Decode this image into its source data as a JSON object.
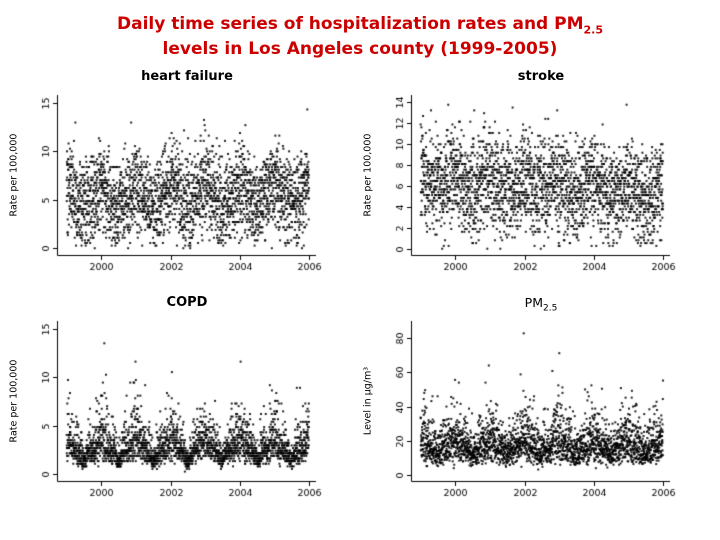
{
  "slide": {
    "title_line1": "Daily time series of hospitalization rates and PM",
    "title_line1_sub": "2.5",
    "title_line2": "levels in Los Angeles county (1999-2005)",
    "title_color": "#cc0000",
    "background": "#ffffff"
  },
  "chart_data": [
    {
      "type": "scatter",
      "title": "heart failure",
      "xlabel": "",
      "ylabel": "Rate per 100,000",
      "x_start": 1999.0,
      "n_points": 2557,
      "xlim": [
        1998.75,
        2006.2
      ],
      "ylim": [
        -0.7,
        15.8
      ],
      "xticks": [
        2000,
        2002,
        2004,
        2006
      ],
      "yticks": [
        0,
        5,
        10,
        15
      ],
      "point_color": "#000000",
      "gen": {
        "dist": "normal",
        "seed": 101,
        "base": 5.4,
        "noise": 2.35,
        "season_amp": 1.1,
        "season_pow": 1,
        "trend": 0,
        "quantum": 0.27,
        "clip_max": 15.5
      }
    },
    {
      "type": "scatter",
      "title": "stroke",
      "xlabel": "",
      "ylabel": "Rate per 100,000",
      "x_start": 1999.0,
      "n_points": 2557,
      "xlim": [
        1998.75,
        2006.2
      ],
      "ylim": [
        -0.6,
        14.7
      ],
      "xticks": [
        2000,
        2002,
        2004,
        2006
      ],
      "yticks": [
        0,
        2,
        4,
        6,
        8,
        10,
        12,
        14
      ],
      "point_color": "#000000",
      "gen": {
        "dist": "normal",
        "seed": 202,
        "base": 6.6,
        "noise": 2.3,
        "season_amp": 0.7,
        "season_pow": 1,
        "trend": -0.18,
        "quantum": 0.27,
        "clip_max": 14.4
      }
    },
    {
      "type": "scatter",
      "title": "COPD",
      "xlabel": "",
      "ylabel": "Rate per 100,000",
      "x_start": 1999.0,
      "n_points": 2557,
      "xlim": [
        1998.75,
        2006.2
      ],
      "ylim": [
        -0.7,
        15.8
      ],
      "xticks": [
        2000,
        2002,
        2004,
        2006
      ],
      "yticks": [
        0,
        5,
        10,
        15
      ],
      "point_color": "#000000",
      "gen": {
        "dist": "lognormal",
        "seed": 303,
        "median": 2.7,
        "logsd": 0.4,
        "season_amp": 0.45,
        "season_pow": 3,
        "trend": 0,
        "quantum": 0.27,
        "clip_max": 15.4
      }
    },
    {
      "type": "scatter",
      "title": "PM",
      "title_sub": "2.5",
      "xlabel": "",
      "ylabel": "Level in µg/m³",
      "x_start": 1999.0,
      "n_points": 2557,
      "xlim": [
        1998.75,
        2006.2
      ],
      "ylim": [
        -3.5,
        90
      ],
      "xticks": [
        2000,
        2002,
        2004,
        2006
      ],
      "yticks": [
        0,
        20,
        40,
        60,
        80
      ],
      "point_color": "#000000",
      "gen": {
        "dist": "lognormal",
        "seed": 404,
        "median": 17,
        "logsd": 0.42,
        "season_amp": 0.22,
        "season_pow": 2,
        "trend": 0,
        "quantum": 0.4,
        "clip_max": 86
      }
    }
  ]
}
